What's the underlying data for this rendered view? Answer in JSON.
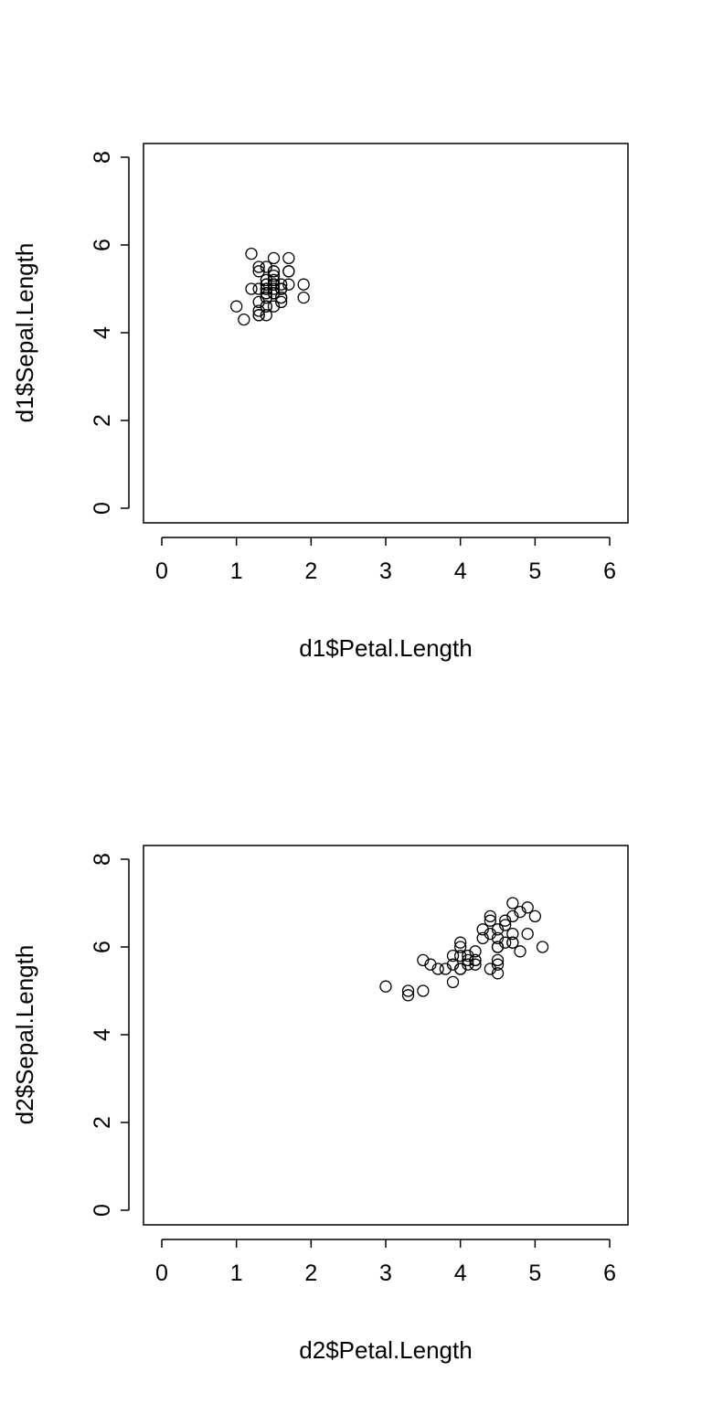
{
  "chart_data": [
    {
      "type": "scatter",
      "title": "",
      "xlabel": "d1$Petal.Length",
      "ylabel": "d1$Sepal.Length",
      "xlim": [
        0,
        6
      ],
      "ylim": [
        0,
        8
      ],
      "xticks": [
        "0",
        "1",
        "2",
        "3",
        "4",
        "5",
        "6"
      ],
      "yticks": [
        "0",
        "2",
        "4",
        "6",
        "8"
      ],
      "marker": "open-circle",
      "grid": false,
      "x": [
        1.4,
        1.4,
        1.3,
        1.5,
        1.4,
        1.7,
        1.4,
        1.5,
        1.4,
        1.5,
        1.5,
        1.6,
        1.4,
        1.1,
        1.2,
        1.5,
        1.3,
        1.4,
        1.7,
        1.5,
        1.7,
        1.5,
        1.0,
        1.7,
        1.9,
        1.6,
        1.6,
        1.5,
        1.4,
        1.6,
        1.6,
        1.5,
        1.5,
        1.4,
        1.5,
        1.2,
        1.3,
        1.4,
        1.3,
        1.5,
        1.3,
        1.3,
        1.3,
        1.6,
        1.9,
        1.4,
        1.6,
        1.4,
        1.5,
        1.4
      ],
      "y": [
        5.1,
        4.9,
        4.7,
        4.6,
        5.0,
        5.4,
        4.6,
        5.0,
        4.4,
        4.9,
        5.4,
        4.8,
        4.8,
        4.3,
        5.8,
        5.7,
        5.4,
        5.1,
        5.7,
        5.1,
        5.4,
        5.1,
        4.6,
        5.1,
        4.8,
        5.0,
        5.0,
        5.2,
        5.2,
        4.7,
        4.8,
        5.4,
        5.2,
        5.5,
        4.9,
        5.0,
        5.5,
        4.9,
        4.4,
        5.1,
        5.0,
        4.5,
        4.4,
        5.0,
        5.1,
        4.8,
        5.1,
        4.6,
        5.3,
        5.0
      ]
    },
    {
      "type": "scatter",
      "title": "",
      "xlabel": "d2$Petal.Length",
      "ylabel": "d2$Sepal.Length",
      "xlim": [
        0,
        6
      ],
      "ylim": [
        0,
        8
      ],
      "xticks": [
        "0",
        "1",
        "2",
        "3",
        "4",
        "5",
        "6"
      ],
      "yticks": [
        "0",
        "2",
        "4",
        "6",
        "8"
      ],
      "marker": "open-circle",
      "grid": false,
      "x": [
        4.7,
        4.5,
        4.9,
        4.0,
        4.6,
        4.5,
        4.7,
        3.3,
        4.6,
        3.9,
        3.5,
        4.2,
        4.0,
        4.7,
        3.6,
        4.4,
        4.5,
        4.1,
        4.5,
        3.9,
        4.8,
        4.0,
        4.9,
        4.7,
        4.3,
        4.4,
        4.8,
        5.0,
        4.5,
        3.5,
        3.8,
        3.7,
        3.9,
        5.1,
        4.5,
        4.5,
        4.7,
        4.4,
        4.1,
        4.0,
        4.4,
        4.6,
        4.0,
        3.3,
        4.2,
        4.2,
        4.2,
        4.3,
        3.0,
        4.1
      ],
      "y": [
        7.0,
        6.4,
        6.9,
        5.5,
        6.5,
        5.7,
        6.3,
        4.9,
        6.6,
        5.2,
        5.0,
        5.9,
        6.0,
        6.1,
        5.6,
        6.7,
        5.6,
        5.8,
        6.2,
        5.6,
        5.9,
        6.1,
        6.3,
        6.1,
        6.4,
        6.6,
        6.8,
        6.7,
        6.0,
        5.7,
        5.5,
        5.5,
        5.8,
        6.0,
        5.4,
        6.0,
        6.7,
        6.3,
        5.6,
        5.5,
        5.5,
        6.1,
        5.8,
        5.0,
        5.6,
        5.7,
        5.7,
        6.2,
        5.1,
        5.7
      ]
    }
  ]
}
